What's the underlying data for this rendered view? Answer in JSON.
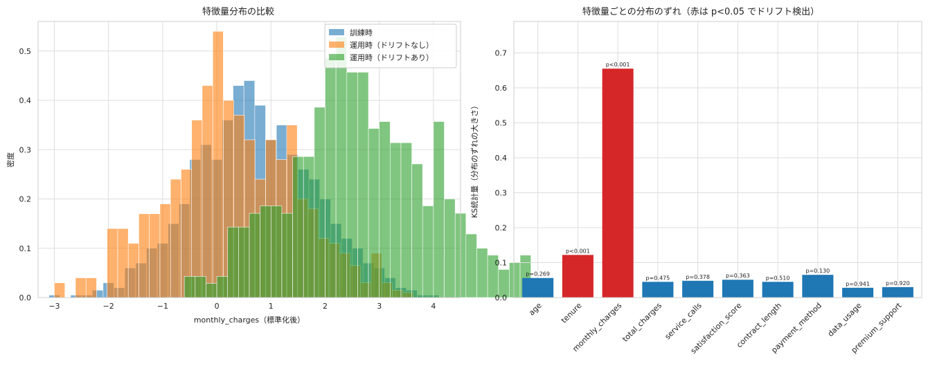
{
  "chart_data": [
    {
      "type": "histogram",
      "title": "特徴量分布の比較",
      "xlabel": "monthly_charges（標準化後）",
      "ylabel": "密度",
      "xlim": [
        -3.3,
        4.5
      ],
      "ylim": [
        0,
        0.56
      ],
      "xticks": [
        -3,
        -2,
        -1,
        0,
        1,
        2,
        3,
        4
      ],
      "yticks": [
        0.0,
        0.1,
        0.2,
        0.3,
        0.4,
        0.5
      ],
      "grid": true,
      "legend_position": "top-right",
      "series": [
        {
          "name": "訓練時",
          "color": "#1f77b4",
          "bin_start": -3.1,
          "bin_width": 0.2,
          "values": [
            0.005,
            0,
            0.005,
            0.005,
            0.015,
            0.03,
            0.02,
            0.06,
            0.07,
            0.1,
            0.11,
            0.15,
            0.19,
            0.28,
            0.31,
            0.28,
            0.36,
            0.43,
            0.44,
            0.39,
            0.32,
            0.35,
            0.29,
            0.26,
            0.24,
            0.2,
            0.15,
            0.12,
            0.1,
            0.07,
            0.06,
            0.04,
            0.02,
            0.015,
            0.005,
            0.005
          ]
        },
        {
          "name": "運用時（ドリフトなし）",
          "color": "#ff7f0e",
          "bin_start": -3.0,
          "bin_width": 0.195,
          "values": [
            0.03,
            0,
            0.04,
            0.04,
            0,
            0.14,
            0.14,
            0.11,
            0.17,
            0.17,
            0.19,
            0.24,
            0.26,
            0.36,
            0.43,
            0.54,
            0.4,
            0.37,
            0.32,
            0.24,
            0.32,
            0.28,
            0.35,
            0.2,
            0.18,
            0.12,
            0.11,
            0.09,
            0.065,
            0.03,
            0.09,
            0.03,
            0.015,
            0.01
          ]
        },
        {
          "name": "運用時（ドリフトあり）",
          "color": "#2ca02c",
          "bin_start": -0.6,
          "bin_width": 0.2,
          "values": [
            0.043,
            0.043,
            0.029,
            0.043,
            0.143,
            0.143,
            0.171,
            0.186,
            0.186,
            0.171,
            0.286,
            0.286,
            0.386,
            0.486,
            0.529,
            0.457,
            0.457,
            0.343,
            0.357,
            0.314,
            0.314,
            0.271,
            0.186,
            0.357,
            0.2,
            0.171,
            0.129,
            0.1,
            0.086,
            0.057,
            0.071,
            0.086
          ]
        }
      ]
    },
    {
      "type": "bar",
      "title": "特徴量ごとの分布のずれ（赤は p<0.05 でドリフト検出）",
      "xlabel": "",
      "ylabel": "KS統計量（分布のずれの大きさ）",
      "ylim": [
        0,
        0.79
      ],
      "yticks": [
        0.0,
        0.1,
        0.2,
        0.3,
        0.4,
        0.5,
        0.6,
        0.7
      ],
      "grid": true,
      "categories": [
        "age",
        "tenure",
        "monthly_charges",
        "total_charges",
        "service_calls",
        "satisfaction_score",
        "contract_length",
        "payment_method",
        "data_usage",
        "premium_support"
      ],
      "values": [
        0.056,
        0.122,
        0.655,
        0.045,
        0.048,
        0.051,
        0.045,
        0.065,
        0.028,
        0.03
      ],
      "labels": [
        "p=0.269",
        "p<0.001",
        "p<0.001",
        "p=0.475",
        "p=0.378",
        "p=0.363",
        "p=0.510",
        "p=0.130",
        "p=0.941",
        "p=0.920"
      ],
      "drift": [
        false,
        true,
        true,
        false,
        false,
        false,
        false,
        false,
        false,
        false
      ],
      "colors": {
        "normal": "#1f77b4",
        "drift": "#d62728"
      }
    }
  ]
}
